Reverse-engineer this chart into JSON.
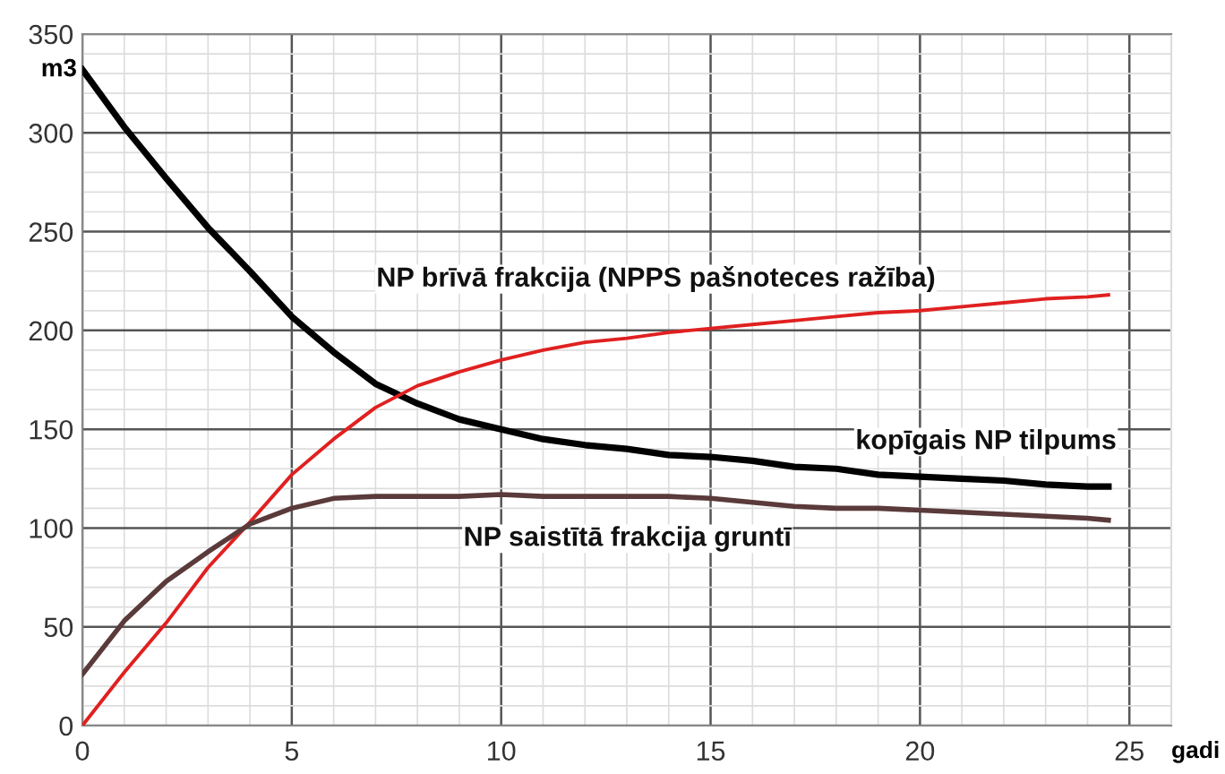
{
  "chart_data": {
    "type": "line",
    "xlabel": "gadi",
    "ylabel": "m3",
    "x": [
      0,
      1,
      2,
      3,
      4,
      5,
      6,
      7,
      8,
      9,
      10,
      11,
      12,
      13,
      14,
      15,
      16,
      17,
      18,
      19,
      20,
      21,
      22,
      23,
      24,
      24.5
    ],
    "series": [
      {
        "name": "kopīgais NP tilpums",
        "color": "#000000",
        "values": [
          332,
          303,
          277,
          252,
          230,
          207,
          189,
          173,
          163,
          155,
          150,
          145,
          142,
          140,
          137,
          136,
          134,
          131,
          130,
          127,
          126,
          125,
          124,
          122,
          121,
          121
        ]
      },
      {
        "name": "NP brīvā frakcija (NPPS pašnoteces ražība)",
        "color": "#e02020",
        "values": [
          0,
          27,
          52,
          80,
          103,
          127,
          145,
          161,
          172,
          179,
          185,
          190,
          194,
          196,
          199,
          201,
          203,
          205,
          207,
          209,
          210,
          212,
          214,
          216,
          217,
          218
        ]
      },
      {
        "name": "NP saistītā frakcija gruntī",
        "color": "#5a3a3a",
        "values": [
          26,
          53,
          73,
          88,
          102,
          110,
          115,
          116,
          116,
          116,
          117,
          116,
          116,
          116,
          116,
          115,
          113,
          111,
          110,
          110,
          109,
          108,
          107,
          106,
          105,
          104
        ]
      }
    ],
    "xlim": [
      0,
      26
    ],
    "xticks": [
      0,
      5,
      10,
      15,
      20,
      25
    ],
    "ylim": [
      0,
      350
    ],
    "yticks": [
      0,
      50,
      100,
      150,
      200,
      250,
      300,
      350
    ],
    "grid": true,
    "legend": false
  }
}
